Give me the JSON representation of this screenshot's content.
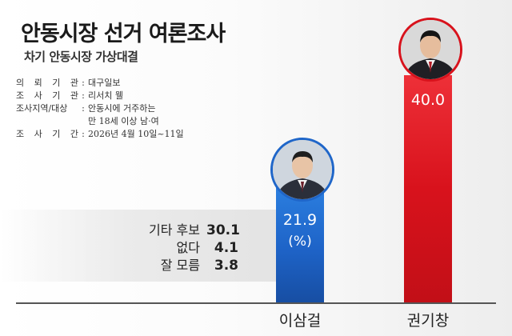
{
  "title": "안동시장 선거 여론조사",
  "subtitle": "차기 안동시장 가상대결",
  "info": {
    "org_label": "의뢰기관",
    "org_value": "대구일보",
    "firm_label": "조사기관",
    "firm_value": "리서치 웰",
    "area_label": "조사지역/대상",
    "area_value": "안동시에 거주하는",
    "area_value2": "만 18세 이상 남·여",
    "period_label": "조사기간",
    "period_value": "2026년 4월 10일~11일"
  },
  "others": [
    {
      "label": "기타 후보",
      "value": "30.1"
    },
    {
      "label": "없다",
      "value": "4.1"
    },
    {
      "label": "잘 모름",
      "value": "3.8"
    }
  ],
  "unit": "(%)",
  "colors": {
    "blue": "#1e63c7",
    "red": "#d8121c"
  },
  "chart_data": {
    "type": "bar",
    "categories": [
      "이삼걸",
      "권기창"
    ],
    "values": [
      21.9,
      40.0
    ],
    "value_labels": [
      "21.9",
      "40.0"
    ],
    "ylim": [
      0,
      40
    ]
  }
}
